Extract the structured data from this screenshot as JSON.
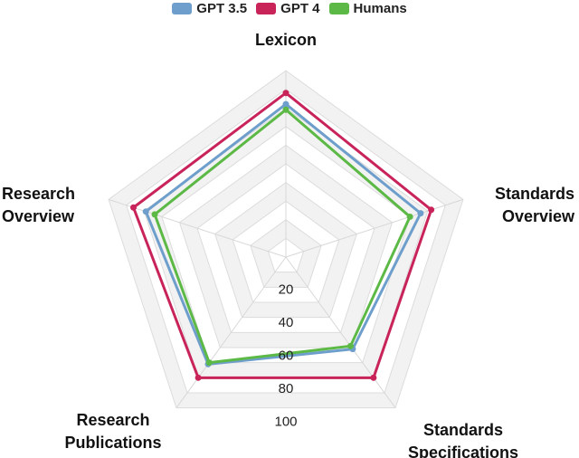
{
  "chart_data": {
    "type": "radar",
    "categories": [
      "Lexicon",
      "Standards Overview",
      "Standards Specifications",
      "Research Publications",
      "Research Overview"
    ],
    "category_lines": [
      [
        "Lexicon"
      ],
      [
        "Standards",
        "Overview"
      ],
      [
        "Standards",
        "Specifications"
      ],
      [
        "Research",
        "Publications"
      ],
      [
        "Research",
        "Overview"
      ]
    ],
    "series": [
      {
        "name": "GPT 3.5",
        "color": "#6e9ecb",
        "values": [
          82,
          76,
          61,
          71,
          79
        ]
      },
      {
        "name": "GPT 4",
        "color": "#c8245a",
        "values": [
          88,
          82,
          80,
          80,
          86
        ]
      },
      {
        "name": "Humans",
        "color": "#5cb946",
        "values": [
          79,
          70,
          59,
          70,
          74
        ]
      }
    ],
    "ticks": [
      20,
      40,
      60,
      80,
      100
    ],
    "rlim": [
      0,
      100
    ],
    "grid": true,
    "legend": "top-center"
  }
}
